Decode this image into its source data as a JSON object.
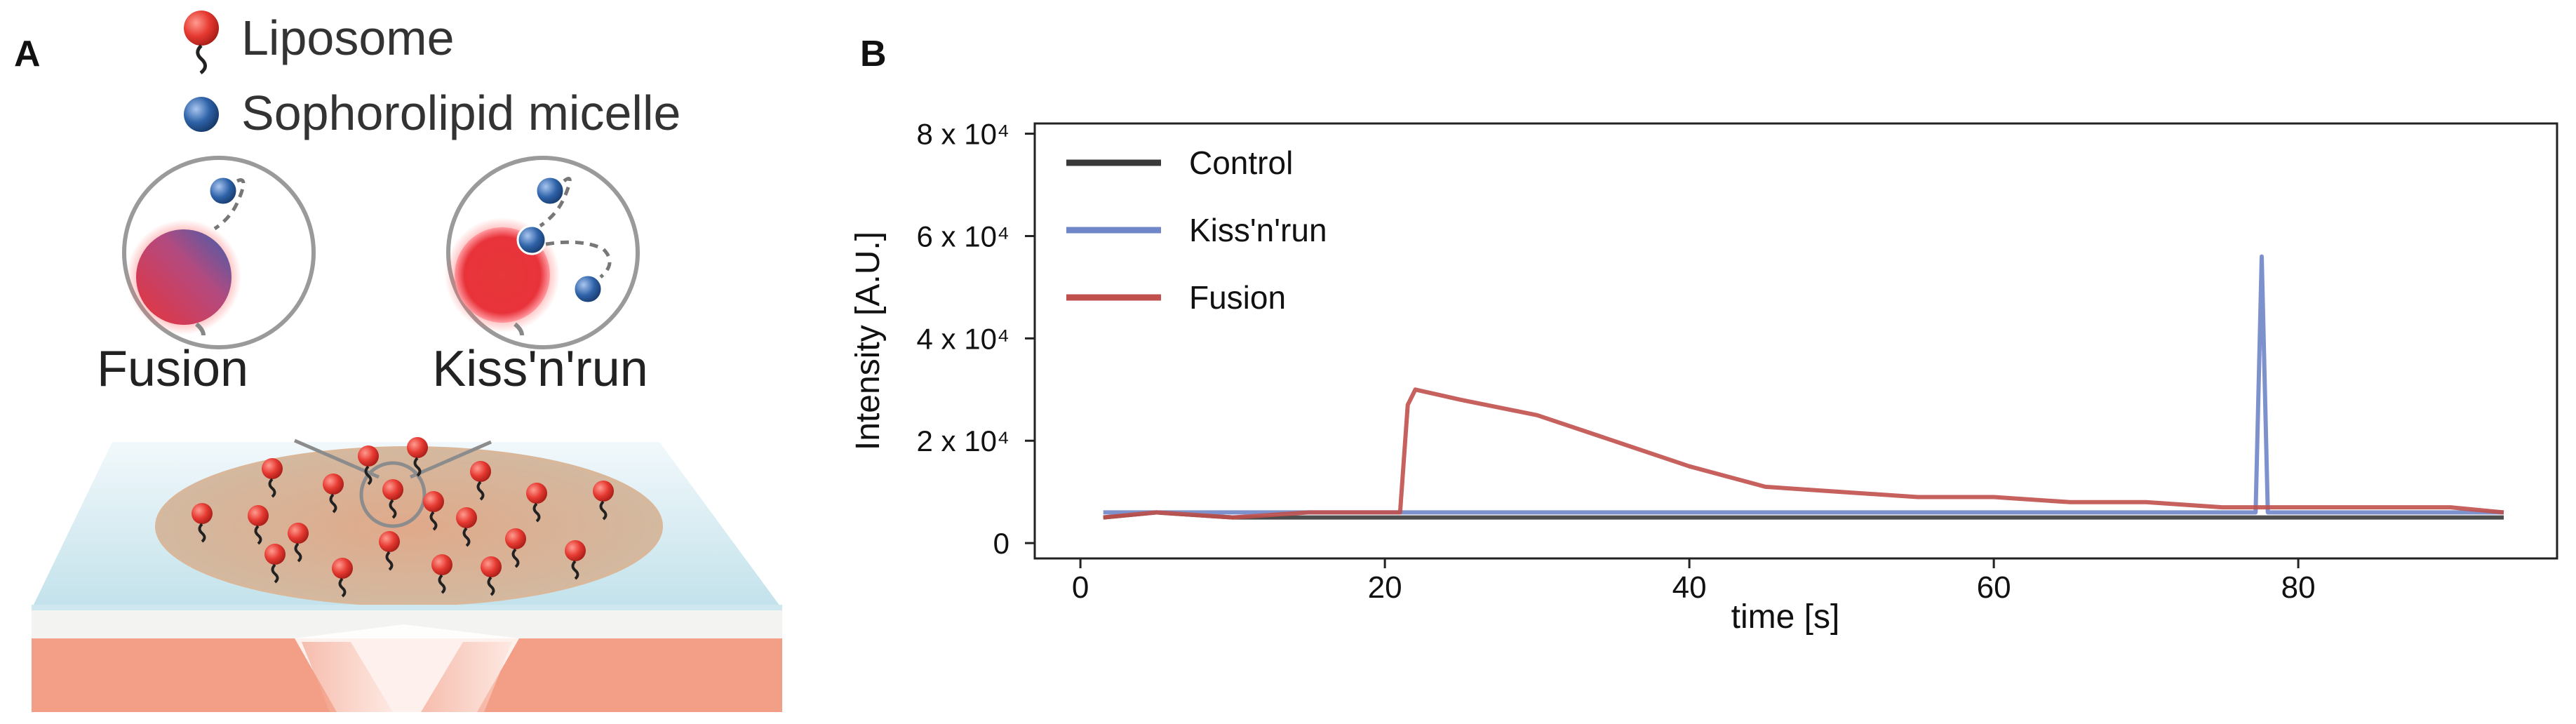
{
  "panel_a": {
    "label": "A",
    "legend": [
      {
        "label": "Liposome",
        "icon": "red-liposome-icon",
        "color": "#e63a32"
      },
      {
        "label": "Sophorolipid micelle",
        "icon": "blue-micelle-icon",
        "color": "#2e62a8"
      }
    ],
    "modes": [
      {
        "label": "Fusion"
      },
      {
        "label": "Kiss'n'run"
      }
    ]
  },
  "panel_b": {
    "label": "B",
    "chart_data": {
      "type": "line",
      "xlabel": "time [s]",
      "ylabel": "Intensity [A.U.]",
      "xlim": [
        -3,
        97
      ],
      "ylim": [
        -3000,
        82000
      ],
      "x_ticks": [
        0,
        20,
        40,
        60,
        80
      ],
      "y_ticks": [
        {
          "value": 0,
          "label": "0"
        },
        {
          "value": 20000,
          "label": "2 x 10⁴"
        },
        {
          "value": 40000,
          "label": "4 x 10⁴"
        },
        {
          "value": 60000,
          "label": "6 x 10⁴"
        },
        {
          "value": 80000,
          "label": "8 x 10⁴"
        }
      ],
      "legend_position": "top-left",
      "grid": false,
      "series": [
        {
          "name": "Control",
          "color": "#3a3a3a",
          "x": [
            1.5,
            5,
            10,
            15,
            20,
            25,
            30,
            35,
            40,
            45,
            50,
            55,
            60,
            65,
            70,
            75,
            80,
            85,
            90,
            93.5
          ],
          "y": [
            5000,
            6000,
            5000,
            5000,
            5000,
            5000,
            5000,
            5000,
            5000,
            5000,
            5000,
            5000,
            5000,
            5000,
            5000,
            5000,
            5000,
            5000,
            5000,
            5000
          ]
        },
        {
          "name": "Kiss'n'run",
          "color": "#6f86c8",
          "x": [
            1.5,
            5,
            10,
            15,
            20,
            25,
            30,
            35,
            40,
            45,
            50,
            55,
            60,
            65,
            70,
            75,
            77.2,
            77.6,
            78.0,
            80,
            85,
            90,
            93.5
          ],
          "y": [
            6000,
            6000,
            6000,
            6000,
            6000,
            6000,
            6000,
            6000,
            6000,
            6000,
            6000,
            6000,
            6000,
            6000,
            6000,
            6000,
            6000,
            56000,
            6000,
            6000,
            6000,
            6000,
            6000
          ]
        },
        {
          "name": "Fusion",
          "color": "#c0504d",
          "x": [
            1.5,
            5,
            10,
            15,
            21,
            21.5,
            22,
            25,
            30,
            35,
            40,
            45,
            50,
            55,
            60,
            65,
            70,
            75,
            80,
            85,
            90,
            93.5
          ],
          "y": [
            5000,
            6000,
            5000,
            6000,
            6000,
            27000,
            30000,
            28000,
            25000,
            20000,
            15000,
            11000,
            10000,
            9000,
            9000,
            8000,
            8000,
            7000,
            7000,
            7000,
            7000,
            6000
          ]
        }
      ]
    }
  }
}
